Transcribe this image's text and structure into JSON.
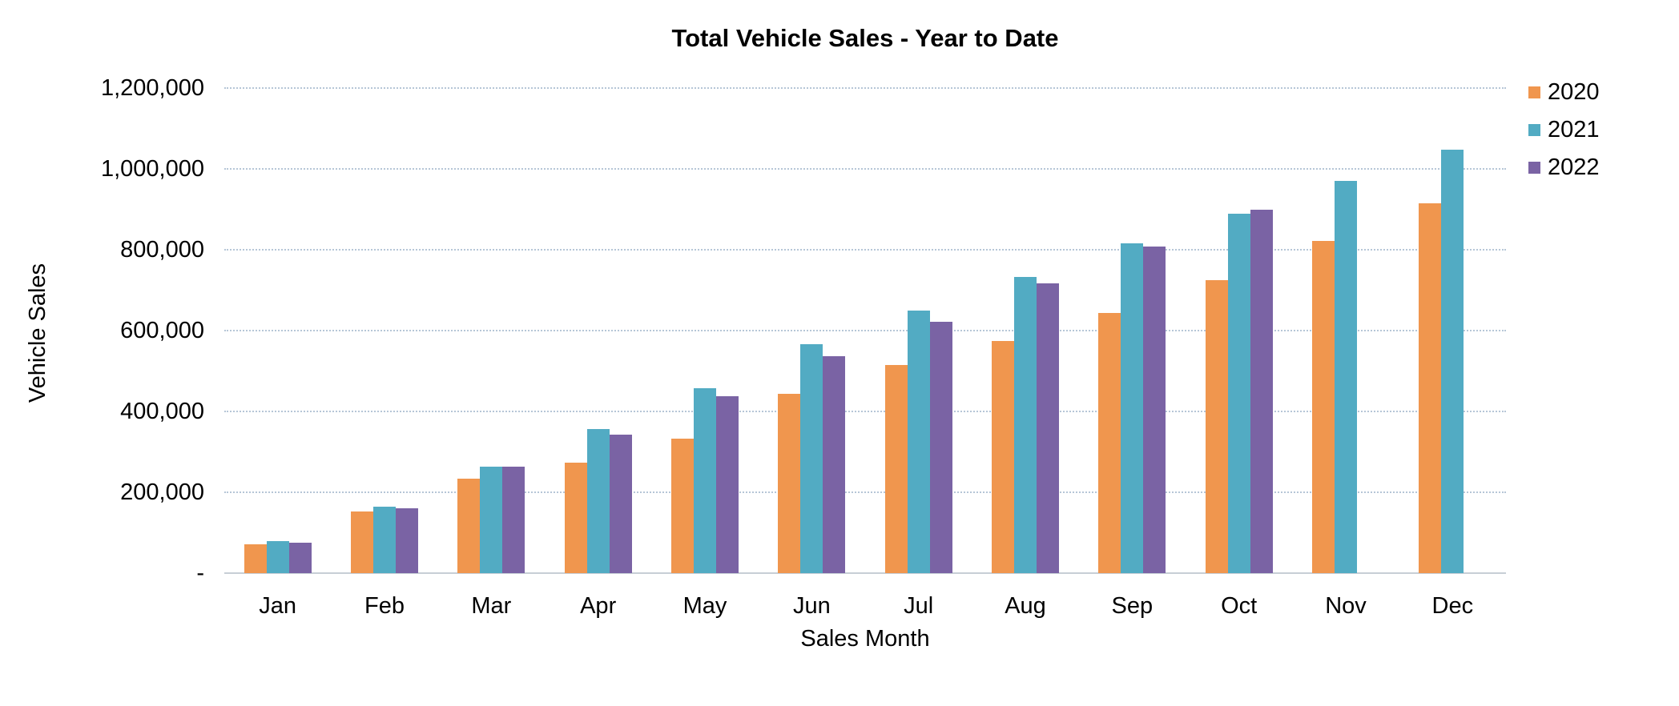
{
  "page": {
    "background": "#ffffff"
  },
  "chart_data": {
    "type": "bar",
    "title": "Total Vehicle Sales - Year to Date",
    "xlabel": "Sales Month",
    "ylabel": "Vehicle Sales",
    "categories": [
      "Jan",
      "Feb",
      "Mar",
      "Apr",
      "May",
      "Jun",
      "Jul",
      "Aug",
      "Sep",
      "Oct",
      "Nov",
      "Dec"
    ],
    "series": [
      {
        "name": "2020",
        "color": "#F0964E",
        "values": [
          71000,
          152000,
          233000,
          273000,
          333000,
          443000,
          514000,
          575000,
          644000,
          725000,
          821000,
          915000
        ]
      },
      {
        "name": "2021",
        "color": "#52ABC3",
        "values": [
          80000,
          164000,
          264000,
          356000,
          457000,
          566000,
          649000,
          733000,
          816000,
          889000,
          970000,
          1048000
        ]
      },
      {
        "name": "2022",
        "color": "#7A63A4",
        "values": [
          76000,
          161000,
          263000,
          343000,
          438000,
          537000,
          621000,
          716000,
          808000,
          899000,
          null,
          null
        ]
      }
    ],
    "ylim": [
      0,
      1200000
    ],
    "ytick_step": 200000,
    "ytick_labels": [
      "-",
      "200,000",
      "400,000",
      "600,000",
      "800,000",
      "1,000,000",
      "1,200,000"
    ],
    "grid": {
      "horizontal": true,
      "style": "dotted",
      "color": "#AABDD1"
    },
    "zero_line_color": "#C7CED6",
    "legend": {
      "position": "top-right",
      "entries": [
        "2020",
        "2021",
        "2022"
      ]
    }
  }
}
